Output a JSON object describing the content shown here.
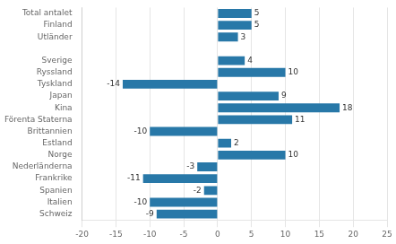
{
  "chart_data": {
    "type": "bar",
    "orientation": "horizontal",
    "categories": [
      "Schweiz",
      "Italien",
      "Spanien",
      "Frankrike",
      "Nederländerna",
      "Norge",
      "Estland",
      "Brittannien",
      "Förenta Staterna",
      "Kina",
      "Japan",
      "Tyskland",
      "Ryssland",
      "Sverige",
      null,
      "Utländer",
      "Finland",
      "Total antalet"
    ],
    "values": [
      -9,
      -10,
      -2,
      -11,
      -3,
      10,
      2,
      -10,
      11,
      18,
      9,
      -14,
      10,
      4,
      0,
      3,
      5,
      5
    ],
    "color": "#2878a8",
    "xlim": [
      -20,
      25
    ],
    "xticks": [
      -20,
      -15,
      -10,
      -5,
      0,
      5,
      10,
      15,
      20,
      25
    ],
    "grid": true,
    "data_labels": true
  }
}
